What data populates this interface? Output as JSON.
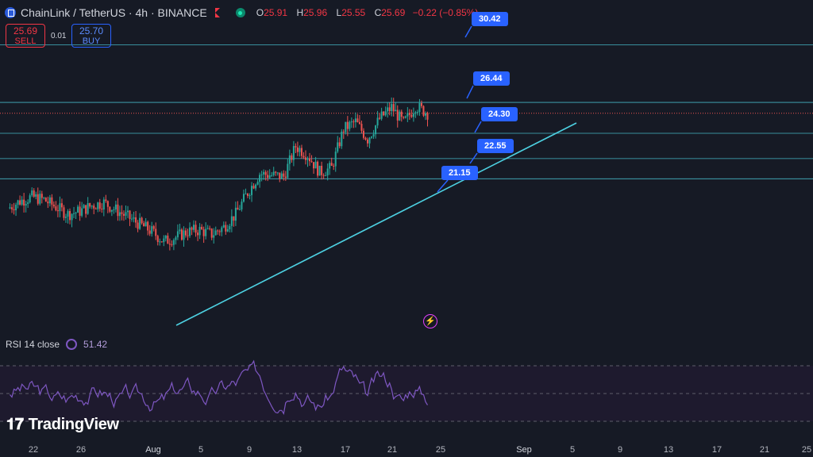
{
  "header": {
    "symbol_title": "ChainLink / TetherUS · 4h · BINANCE",
    "ohlc": [
      {
        "k": "O",
        "v": "25.91"
      },
      {
        "k": "H",
        "v": "25.96"
      },
      {
        "k": "L",
        "v": "25.55"
      },
      {
        "k": "C",
        "v": "25.69"
      },
      {
        "k": "",
        "v": "−0.22 (−0.85%)"
      }
    ]
  },
  "trade": {
    "sell_price": "25.69",
    "sell_label": "SELL",
    "spread": "0.01",
    "buy_price": "25.70",
    "buy_label": "BUY"
  },
  "levels": [
    "30.42",
    "26.44",
    "24.30",
    "22.55",
    "21.15"
  ],
  "rsi": {
    "label": "RSI 14 close",
    "value": "51.42"
  },
  "branding": {
    "name": "TradingView"
  },
  "x_axis": [
    "22",
    "26",
    "Aug",
    "5",
    "9",
    "13",
    "17",
    "21",
    "25",
    "Sep",
    "5",
    "9",
    "13",
    "17",
    "21",
    "25"
  ],
  "colors": {
    "up": "#26a69a",
    "down": "#ef5350",
    "level_line": "#4dd0e1",
    "callout": "#2962ff",
    "rsi": "#7e57c2",
    "background": "#161a25"
  },
  "chart_data": {
    "type": "candlestick",
    "symbol": "LINK/USDT",
    "interval": "4h",
    "close_path": [
      {
        "x": "Jul 20",
        "y": 19.1
      },
      {
        "x": "Jul 21",
        "y": 19.6
      },
      {
        "x": "Jul 22",
        "y": 19.9
      },
      {
        "x": "Jul 23",
        "y": 19.7
      },
      {
        "x": "Jul 24",
        "y": 19.2
      },
      {
        "x": "Jul 25",
        "y": 18.7
      },
      {
        "x": "Jul 26",
        "y": 18.9
      },
      {
        "x": "Jul 27",
        "y": 19.3
      },
      {
        "x": "Jul 28",
        "y": 19.5
      },
      {
        "x": "Jul 29",
        "y": 19.0
      },
      {
        "x": "Jul 30",
        "y": 18.5
      },
      {
        "x": "Jul 31",
        "y": 18.0
      },
      {
        "x": "Aug 1",
        "y": 17.5
      },
      {
        "x": "Aug 2",
        "y": 16.8
      },
      {
        "x": "Aug 3",
        "y": 17.1
      },
      {
        "x": "Aug 4",
        "y": 17.5
      },
      {
        "x": "Aug 5",
        "y": 17.6
      },
      {
        "x": "Aug 6",
        "y": 17.3
      },
      {
        "x": "Aug 7",
        "y": 17.8
      },
      {
        "x": "Aug 8",
        "y": 18.7
      },
      {
        "x": "Aug 9",
        "y": 20.2
      },
      {
        "x": "Aug 10",
        "y": 21.5
      },
      {
        "x": "Aug 11",
        "y": 21.4
      },
      {
        "x": "Aug 12",
        "y": 21.3
      },
      {
        "x": "Aug 13",
        "y": 23.4
      },
      {
        "x": "Aug 14",
        "y": 22.8
      },
      {
        "x": "Aug 15",
        "y": 21.6
      },
      {
        "x": "Aug 16",
        "y": 21.9
      },
      {
        "x": "Aug 17",
        "y": 24.6
      },
      {
        "x": "Aug 18",
        "y": 25.1
      },
      {
        "x": "Aug 19",
        "y": 23.9
      },
      {
        "x": "Aug 20",
        "y": 25.3
      },
      {
        "x": "Aug 21",
        "y": 26.1
      },
      {
        "x": "Aug 22",
        "y": 25.0
      },
      {
        "x": "Aug 23",
        "y": 26.2
      },
      {
        "x": "Aug 24",
        "y": 25.69
      }
    ],
    "horizontal_levels": [
      30.42,
      26.44,
      24.3,
      22.55,
      21.15
    ],
    "trendline": [
      {
        "x": "Aug 3",
        "y": 16.8
      },
      {
        "x": "Sep 6",
        "y": 24.9
      }
    ],
    "rsi": {
      "period": 14,
      "source": "close",
      "last": 51.42,
      "bands": [
        70,
        50,
        30
      ]
    },
    "current_price": 25.69
  }
}
